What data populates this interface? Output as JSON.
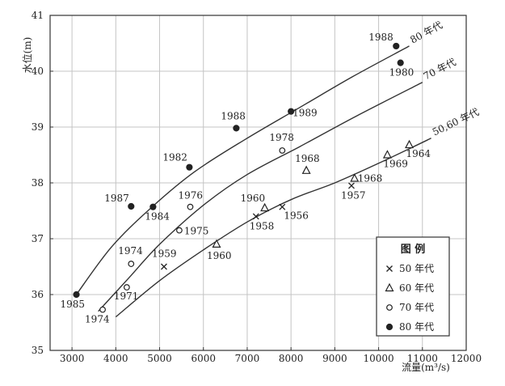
{
  "chart_data": {
    "type": "scatter",
    "xlabel": "流量(m³/s)",
    "ylabel": "水位(m)",
    "xlim": [
      2500,
      12000
    ],
    "ylim": [
      35,
      41
    ],
    "x_ticks": [
      3000,
      4000,
      5000,
      6000,
      7000,
      8000,
      9000,
      10000,
      11000,
      12000
    ],
    "y_ticks": [
      35,
      36,
      37,
      38,
      39,
      40,
      41
    ],
    "grid": true,
    "legend_position": "bottom-right",
    "legend": {
      "title": "图  例",
      "entries": [
        {
          "marker": "x",
          "label": "50 年代"
        },
        {
          "marker": "triangle",
          "label": "60 年代"
        },
        {
          "marker": "open-circle",
          "label": "70 年代"
        },
        {
          "marker": "filled-circle",
          "label": "80 年代"
        }
      ]
    },
    "series": [
      {
        "name": "50 年代",
        "marker": "x",
        "points": [
          {
            "x": 5100,
            "y": 36.5,
            "label": "1959"
          },
          {
            "x": 7200,
            "y": 37.4,
            "label": "1958"
          },
          {
            "x": 7800,
            "y": 37.57,
            "label": "1956"
          },
          {
            "x": 9380,
            "y": 37.95,
            "label": "1957"
          }
        ]
      },
      {
        "name": "60 年代",
        "marker": "triangle",
        "points": [
          {
            "x": 6300,
            "y": 36.9,
            "label": "1960"
          },
          {
            "x": 7400,
            "y": 37.55,
            "label": "1960"
          },
          {
            "x": 8350,
            "y": 38.22,
            "label": "1968"
          },
          {
            "x": 9450,
            "y": 38.08,
            "label": "1968"
          },
          {
            "x": 10200,
            "y": 38.5,
            "label": "1969"
          },
          {
            "x": 10700,
            "y": 38.68,
            "label": "1964"
          }
        ]
      },
      {
        "name": "70 年代",
        "marker": "open-circle",
        "points": [
          {
            "x": 3700,
            "y": 35.73,
            "label": "1974"
          },
          {
            "x": 4250,
            "y": 36.13,
            "label": "1971"
          },
          {
            "x": 4350,
            "y": 36.55,
            "label": "1974"
          },
          {
            "x": 5450,
            "y": 37.15,
            "label": "1975"
          },
          {
            "x": 5700,
            "y": 37.57,
            "label": "1976"
          },
          {
            "x": 7800,
            "y": 38.58,
            "label": "1978"
          }
        ]
      },
      {
        "name": "80 年代",
        "marker": "filled-circle",
        "points": [
          {
            "x": 3100,
            "y": 36.0,
            "label": "1985"
          },
          {
            "x": 4350,
            "y": 37.58,
            "label": "1987"
          },
          {
            "x": 4850,
            "y": 37.57,
            "label": "1984"
          },
          {
            "x": 5680,
            "y": 38.28,
            "label": "1982"
          },
          {
            "x": 6750,
            "y": 38.98,
            "label": "1988"
          },
          {
            "x": 8000,
            "y": 39.28,
            "label": "1989"
          },
          {
            "x": 10400,
            "y": 40.45,
            "label": "1988"
          },
          {
            "x": 10500,
            "y": 40.15,
            "label": "1980"
          }
        ]
      }
    ],
    "curves": [
      {
        "label": "80 年代",
        "points": [
          [
            3100,
            36.0
          ],
          [
            3900,
            36.85
          ],
          [
            4800,
            37.55
          ],
          [
            5800,
            38.2
          ],
          [
            7000,
            38.8
          ],
          [
            8200,
            39.35
          ],
          [
            9400,
            39.9
          ],
          [
            10700,
            40.45
          ]
        ]
      },
      {
        "label": "70 年代",
        "points": [
          [
            3600,
            35.7
          ],
          [
            4300,
            36.3
          ],
          [
            5000,
            36.9
          ],
          [
            6000,
            37.6
          ],
          [
            7000,
            38.15
          ],
          [
            8200,
            38.65
          ],
          [
            9500,
            39.2
          ],
          [
            11000,
            39.8
          ]
        ]
      },
      {
        "label": "50,60 年代",
        "points": [
          [
            4000,
            35.6
          ],
          [
            5000,
            36.25
          ],
          [
            6000,
            36.8
          ],
          [
            7000,
            37.3
          ],
          [
            8000,
            37.7
          ],
          [
            9000,
            38.0
          ],
          [
            10000,
            38.35
          ],
          [
            11200,
            38.8
          ]
        ]
      }
    ]
  }
}
